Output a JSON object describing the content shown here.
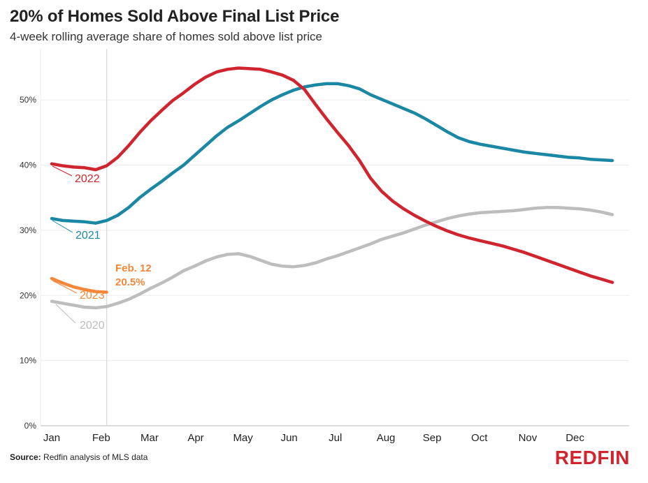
{
  "header": {
    "title": "20% of Homes Sold Above Final List Price",
    "subtitle": "4-week rolling average share of homes sold above list price"
  },
  "footer": {
    "source_label": "Source:",
    "source_text": " Redfin analysis of MLS data",
    "brand": "REDFIN"
  },
  "colors": {
    "2020": "#bdbdbd",
    "2021": "#1a88a5",
    "2022": "#d0252f",
    "2023": "#f4873a",
    "grid": "#ececec",
    "marker": "#d9d9d9"
  },
  "chart_data": {
    "type": "line",
    "title": "20% of Homes Sold Above Final List Price",
    "subtitle": "4-week rolling average share of homes sold above list price",
    "x_unit": "week of year",
    "x_range": [
      1,
      52
    ],
    "ylim": [
      0,
      55
    ],
    "yticks": [
      0,
      10,
      20,
      30,
      40,
      50
    ],
    "ytick_labels": [
      "0%",
      "10%",
      "20%",
      "30%",
      "40%",
      "50%"
    ],
    "grid": true,
    "month_labels": [
      {
        "label": "Jan",
        "week": 1
      },
      {
        "label": "Feb",
        "week": 5.5
      },
      {
        "label": "Mar",
        "week": 9.9
      },
      {
        "label": "Apr",
        "week": 14.1
      },
      {
        "label": "May",
        "week": 18.4
      },
      {
        "label": "Jun",
        "week": 22.6
      },
      {
        "label": "Jul",
        "week": 26.8
      },
      {
        "label": "Aug",
        "week": 31.4
      },
      {
        "label": "Sep",
        "week": 35.6
      },
      {
        "label": "Oct",
        "week": 39.9
      },
      {
        "label": "Nov",
        "week": 44.3
      },
      {
        "label": "Dec",
        "week": 48.6
      }
    ],
    "series": [
      {
        "name": "2020",
        "color": "#bdbdbd",
        "x": [
          1,
          2,
          3,
          4,
          5,
          6,
          7,
          8,
          9,
          10,
          11,
          12,
          13,
          14,
          15,
          16,
          17,
          18,
          19,
          20,
          21,
          22,
          23,
          24,
          25,
          26,
          27,
          28,
          29,
          30,
          31,
          32,
          33,
          34,
          35,
          36,
          37,
          38,
          39,
          40,
          41,
          42,
          43,
          44,
          45,
          46,
          47,
          48,
          49,
          50,
          51,
          52
        ],
        "values": [
          19.1,
          18.8,
          18.5,
          18.2,
          18.1,
          18.3,
          18.8,
          19.4,
          20.2,
          21.1,
          21.9,
          22.8,
          23.8,
          24.5,
          25.3,
          25.9,
          26.3,
          26.4,
          26.0,
          25.4,
          24.8,
          24.5,
          24.4,
          24.6,
          25.0,
          25.6,
          26.1,
          26.7,
          27.3,
          27.9,
          28.6,
          29.1,
          29.6,
          30.2,
          30.8,
          31.3,
          31.8,
          32.2,
          32.5,
          32.7,
          32.8,
          32.9,
          33.0,
          33.2,
          33.4,
          33.5,
          33.5,
          33.4,
          33.3,
          33.1,
          32.8,
          32.4
        ]
      },
      {
        "name": "2021",
        "color": "#1a88a5",
        "x": [
          1,
          2,
          3,
          4,
          5,
          6,
          7,
          8,
          9,
          10,
          11,
          12,
          13,
          14,
          15,
          16,
          17,
          18,
          19,
          20,
          21,
          22,
          23,
          24,
          25,
          26,
          27,
          28,
          29,
          30,
          31,
          32,
          33,
          34,
          35,
          36,
          37,
          38,
          39,
          40,
          41,
          42,
          43,
          44,
          45,
          46,
          47,
          48,
          49,
          50,
          51,
          52
        ],
        "values": [
          31.8,
          31.5,
          31.4,
          31.3,
          31.1,
          31.5,
          32.3,
          33.5,
          35.0,
          36.3,
          37.5,
          38.8,
          40.0,
          41.5,
          43.0,
          44.5,
          45.8,
          46.8,
          47.9,
          49.0,
          50.0,
          50.8,
          51.5,
          52.0,
          52.3,
          52.5,
          52.5,
          52.2,
          51.7,
          50.8,
          50.1,
          49.4,
          48.7,
          48.0,
          47.1,
          46.1,
          45.1,
          44.2,
          43.6,
          43.2,
          42.9,
          42.6,
          42.3,
          42.0,
          41.8,
          41.6,
          41.4,
          41.2,
          41.1,
          40.9,
          40.8,
          40.7
        ]
      },
      {
        "name": "2022",
        "color": "#d0252f",
        "x": [
          1,
          2,
          3,
          4,
          5,
          6,
          7,
          8,
          9,
          10,
          11,
          12,
          13,
          14,
          15,
          16,
          17,
          18,
          19,
          20,
          21,
          22,
          23,
          24,
          25,
          26,
          27,
          28,
          29,
          30,
          31,
          32,
          33,
          34,
          35,
          36,
          37,
          38,
          39,
          40,
          41,
          42,
          43,
          44,
          45,
          46,
          47,
          48,
          49,
          50,
          51,
          52
        ],
        "values": [
          40.2,
          39.9,
          39.7,
          39.6,
          39.3,
          39.9,
          41.2,
          43.0,
          45.0,
          46.8,
          48.4,
          49.9,
          51.1,
          52.4,
          53.5,
          54.3,
          54.7,
          54.9,
          54.8,
          54.7,
          54.3,
          53.8,
          53.0,
          51.6,
          49.3,
          47.1,
          45.0,
          43.0,
          40.7,
          38.0,
          36.0,
          34.5,
          33.3,
          32.3,
          31.4,
          30.6,
          29.9,
          29.3,
          28.8,
          28.4,
          28.0,
          27.6,
          27.1,
          26.6,
          26.0,
          25.4,
          24.8,
          24.2,
          23.6,
          23.0,
          22.5,
          22.0
        ]
      },
      {
        "name": "2023",
        "color": "#f4873a",
        "x": [
          1,
          2,
          3,
          4,
          5,
          6
        ],
        "values": [
          22.6,
          21.9,
          21.3,
          20.9,
          20.6,
          20.5
        ]
      }
    ],
    "series_labels": [
      {
        "text": "2022",
        "series": "2022"
      },
      {
        "text": "2021",
        "series": "2021"
      },
      {
        "text": "2023",
        "series": "2023"
      },
      {
        "text": "2020",
        "series": "2020"
      }
    ],
    "annotation": {
      "line1": "Feb. 12",
      "line2": "20.5%",
      "week": 6,
      "value": 20.5
    }
  }
}
